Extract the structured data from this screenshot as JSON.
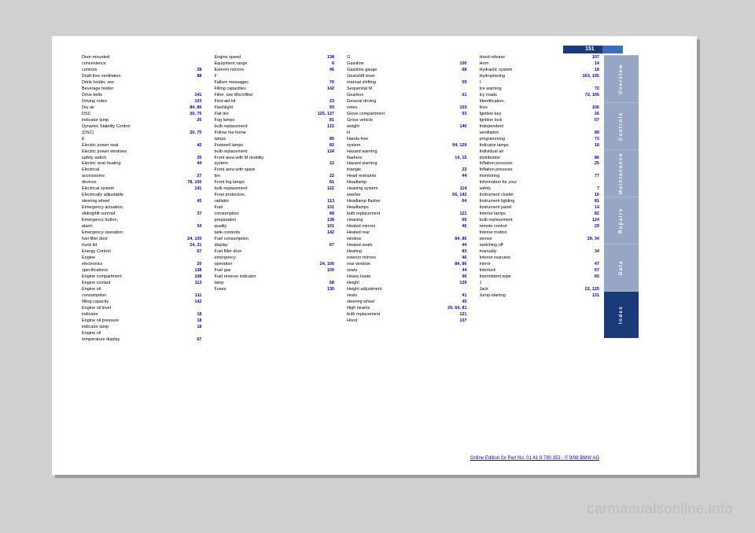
{
  "page_number": "151",
  "tabs": [
    {
      "label": "Overview",
      "active": false
    },
    {
      "label": "Controls",
      "active": false
    },
    {
      "label": "Maintenance",
      "active": false
    },
    {
      "label": "Repairs",
      "active": false
    },
    {
      "label": "Data",
      "active": false
    },
    {
      "label": "Index",
      "active": true
    }
  ],
  "footer": "Online Edition for Part No. 01 41 9 790 353 - © 9/98 BMW AG",
  "watermark": "carmanualsonline.info",
  "columns": [
    [
      {
        "t": "Door-mounted",
        "p": ""
      },
      {
        "t": "convenience",
        "p": ""
      },
      {
        "t": "controls",
        "p": "28"
      },
      {
        "t": "Draft-free ventilation",
        "p": "88"
      },
      {
        "t": "Drink holder, see",
        "p": ""
      },
      {
        "t": "Beverage holder",
        "p": ""
      },
      {
        "t": "Drive belts",
        "p": "141"
      },
      {
        "t": "Driving notes",
        "p": "103"
      },
      {
        "t": "Dry air",
        "p": "84, 86"
      },
      {
        "t": "DSC",
        "p": "20, 75"
      },
      {
        "t": "indicator lamp",
        "p": "20"
      },
      {
        "t": "Dynamic Stability Control",
        "p": ""
      },
      {
        "t": "(DSC)",
        "p": "20, 75"
      },
      {
        "t": "",
        "p": ""
      },
      {
        "t": "E",
        "p": ""
      },
      {
        "t": "Electric power seat",
        "p": "42"
      },
      {
        "t": "Electric power windows",
        "p": ""
      },
      {
        "t": "safety switch",
        "p": "35"
      },
      {
        "t": "Electric seat heating",
        "p": "44"
      },
      {
        "t": "Electrical",
        "p": ""
      },
      {
        "t": "accessories",
        "p": "27"
      },
      {
        "t": "devices",
        "p": "78, 100"
      },
      {
        "t": "Electrical system",
        "p": "141"
      },
      {
        "t": "Electrically adjustable",
        "p": ""
      },
      {
        "t": "steering wheel",
        "p": "45"
      },
      {
        "t": "Emergency actuation,",
        "p": ""
      },
      {
        "t": "sliding/tilt sunroof",
        "p": "37"
      },
      {
        "t": "Emergency button,",
        "p": ""
      },
      {
        "t": "alarm",
        "p": "34"
      },
      {
        "t": "Emergency operation",
        "p": ""
      },
      {
        "t": "fuel filler door",
        "p": "24, 100"
      },
      {
        "t": "trunk lid",
        "p": "24, 31"
      },
      {
        "t": "Energy Control",
        "p": "67"
      },
      {
        "t": "Engine",
        "p": ""
      },
      {
        "t": "electronics",
        "p": "20"
      },
      {
        "t": "specifications",
        "p": "138"
      },
      {
        "t": "Engine compartment",
        "p": "108"
      },
      {
        "t": "Engine coolant",
        "p": "113"
      },
      {
        "t": "Engine oil",
        "p": ""
      },
      {
        "t": "consumption",
        "p": "111"
      },
      {
        "t": "filling capacity",
        "p": "142"
      },
      {
        "t": "Engine oil level",
        "p": ""
      },
      {
        "t": "indicator",
        "p": "18"
      },
      {
        "t": "Engine oil pressure",
        "p": "18"
      },
      {
        "t": "indicator lamp",
        "p": "18"
      },
      {
        "t": "Engine oil",
        "p": ""
      },
      {
        "t": "temperature display",
        "p": "67"
      }
    ],
    [
      {
        "t": "Engine speed",
        "p": "138"
      },
      {
        "t": "Equipment range",
        "p": "6"
      },
      {
        "t": "Exterior mirrors",
        "p": "46"
      },
      {
        "t": "",
        "p": ""
      },
      {
        "t": "F",
        "p": ""
      },
      {
        "t": "Failure messages",
        "p": "70"
      },
      {
        "t": "Filling capacities",
        "p": "142"
      },
      {
        "t": "Filter, see Microfilter",
        "p": ""
      },
      {
        "t": "First-aid kit",
        "p": "23"
      },
      {
        "t": "Flashlight",
        "p": "93"
      },
      {
        "t": "Flat tire",
        "p": "125, 127"
      },
      {
        "t": "Fog lamps",
        "p": "81"
      },
      {
        "t": "bulb replacement",
        "p": "122"
      },
      {
        "t": "Follow me home",
        "p": ""
      },
      {
        "t": "lamps",
        "p": "80"
      },
      {
        "t": "Footwell lamps",
        "p": "82"
      },
      {
        "t": "bulb replacement",
        "p": "124"
      },
      {
        "t": "Front area with M mobility",
        "p": ""
      },
      {
        "t": "system",
        "p": "22"
      },
      {
        "t": "Front area with spare",
        "p": ""
      },
      {
        "t": "tire",
        "p": "22"
      },
      {
        "t": "Front fog lamps",
        "p": "81"
      },
      {
        "t": "bulb replacement",
        "p": "122"
      },
      {
        "t": "Frost protection,",
        "p": ""
      },
      {
        "t": "radiator",
        "p": "113"
      },
      {
        "t": "Fuel",
        "p": "101"
      },
      {
        "t": "consumption",
        "p": "68"
      },
      {
        "t": "preparation",
        "p": "138"
      },
      {
        "t": "quality",
        "p": "101"
      },
      {
        "t": "tank contents",
        "p": "142"
      },
      {
        "t": "Fuel consumption",
        "p": ""
      },
      {
        "t": "display",
        "p": "67"
      },
      {
        "t": "Fuel filler door",
        "p": ""
      },
      {
        "t": "emergency",
        "p": ""
      },
      {
        "t": "operation",
        "p": "24, 100"
      },
      {
        "t": "Fuel gas",
        "p": "100"
      },
      {
        "t": "Fuel reserve indicator",
        "p": ""
      },
      {
        "t": "lamp",
        "p": "68"
      },
      {
        "t": "Fuses",
        "p": "130"
      }
    ],
    [
      {
        "t": "G",
        "p": ""
      },
      {
        "t": "Gasoline",
        "p": "100"
      },
      {
        "t": "Gasoline gauge",
        "p": "68"
      },
      {
        "t": "Gearshift lever",
        "p": ""
      },
      {
        "t": "manual shifting",
        "p": "59"
      },
      {
        "t": "Sequential M",
        "p": ""
      },
      {
        "t": "Gearbox",
        "p": "61"
      },
      {
        "t": "General driving",
        "p": ""
      },
      {
        "t": "notes",
        "p": "103"
      },
      {
        "t": "Glove compartment",
        "p": "93"
      },
      {
        "t": "Gross vehicle",
        "p": ""
      },
      {
        "t": "weight",
        "p": "140"
      },
      {
        "t": "",
        "p": ""
      },
      {
        "t": "H",
        "p": ""
      },
      {
        "t": "Hands-free",
        "p": ""
      },
      {
        "t": "system",
        "p": "94, 129"
      },
      {
        "t": "Hazard warning",
        "p": ""
      },
      {
        "t": "flashers",
        "p": "14, 15"
      },
      {
        "t": "Hazard warning",
        "p": ""
      },
      {
        "t": "triangle",
        "p": "23"
      },
      {
        "t": "Head restraints",
        "p": "44"
      },
      {
        "t": "Headlamp",
        "p": ""
      },
      {
        "t": "cleaning system",
        "p": "114"
      },
      {
        "t": "washer",
        "p": "65, 142"
      },
      {
        "t": "Headlamp flasher",
        "p": "64"
      },
      {
        "t": "Headlamps",
        "p": ""
      },
      {
        "t": "bulb replacement",
        "p": "121"
      },
      {
        "t": "cleaning",
        "p": "65"
      },
      {
        "t": "Heated mirrors",
        "p": "46"
      },
      {
        "t": "Heated rear",
        "p": ""
      },
      {
        "t": "window",
        "p": "84, 86"
      },
      {
        "t": "Heated seats",
        "p": "44"
      },
      {
        "t": "Heating",
        "p": "83"
      },
      {
        "t": "exterior mirrors",
        "p": "46"
      },
      {
        "t": "rear window",
        "p": "84, 86"
      },
      {
        "t": "seats",
        "p": "44"
      },
      {
        "t": "Heavy loads",
        "p": "96"
      },
      {
        "t": "Height",
        "p": "139"
      },
      {
        "t": "Height adjustment",
        "p": ""
      },
      {
        "t": "seats",
        "p": "41"
      },
      {
        "t": "steering wheel",
        "p": "45"
      },
      {
        "t": "High beams",
        "p": "20, 64, 81"
      },
      {
        "t": "bulb replacement",
        "p": "121"
      },
      {
        "t": "Hood",
        "p": "107"
      }
    ],
    [
      {
        "t": "Hood release",
        "p": "107"
      },
      {
        "t": "Horn",
        "p": "14"
      },
      {
        "t": "Hydraulic system",
        "p": "18"
      },
      {
        "t": "Hydroplaning",
        "p": "103, 105"
      },
      {
        "t": "",
        "p": ""
      },
      {
        "t": "I",
        "p": ""
      },
      {
        "t": "Ice warning",
        "p": "72"
      },
      {
        "t": "Icy roads",
        "p": "72, 105"
      },
      {
        "t": "Identification,",
        "p": ""
      },
      {
        "t": "tires",
        "p": "106"
      },
      {
        "t": "Ignition key",
        "p": "26"
      },
      {
        "t": "Ignition lock",
        "p": "57"
      },
      {
        "t": "Independent",
        "p": ""
      },
      {
        "t": "ventilation",
        "p": "89"
      },
      {
        "t": "programming",
        "p": "73"
      },
      {
        "t": "Indicator lamps",
        "p": "18"
      },
      {
        "t": "Individual air",
        "p": ""
      },
      {
        "t": "distribution",
        "p": "86"
      },
      {
        "t": "Inflation pressure",
        "p": "25"
      },
      {
        "t": "Inflation pressure",
        "p": ""
      },
      {
        "t": "monitoring",
        "p": "77"
      },
      {
        "t": "Information for your",
        "p": ""
      },
      {
        "t": "safety",
        "p": "7"
      },
      {
        "t": "Instrument cluster",
        "p": "16"
      },
      {
        "t": "Instrument lighting",
        "p": "81"
      },
      {
        "t": "Instrument panel",
        "p": "14"
      },
      {
        "t": "Interior lamps",
        "p": "82"
      },
      {
        "t": "bulb replacement",
        "p": "124"
      },
      {
        "t": "remote control",
        "p": "29"
      },
      {
        "t": "Interior motion",
        "p": ""
      },
      {
        "t": "sensor",
        "p": "29, 34"
      },
      {
        "t": "switching off",
        "p": ""
      },
      {
        "t": "manually",
        "p": "34"
      },
      {
        "t": "Interior rearview",
        "p": ""
      },
      {
        "t": "mirror",
        "p": "47"
      },
      {
        "t": "Interlock",
        "p": "57"
      },
      {
        "t": "Intermittent wipe",
        "p": "65"
      },
      {
        "t": "",
        "p": ""
      },
      {
        "t": "J",
        "p": ""
      },
      {
        "t": "Jack",
        "p": "22, 125"
      },
      {
        "t": "Jump-starting",
        "p": "131"
      }
    ]
  ]
}
